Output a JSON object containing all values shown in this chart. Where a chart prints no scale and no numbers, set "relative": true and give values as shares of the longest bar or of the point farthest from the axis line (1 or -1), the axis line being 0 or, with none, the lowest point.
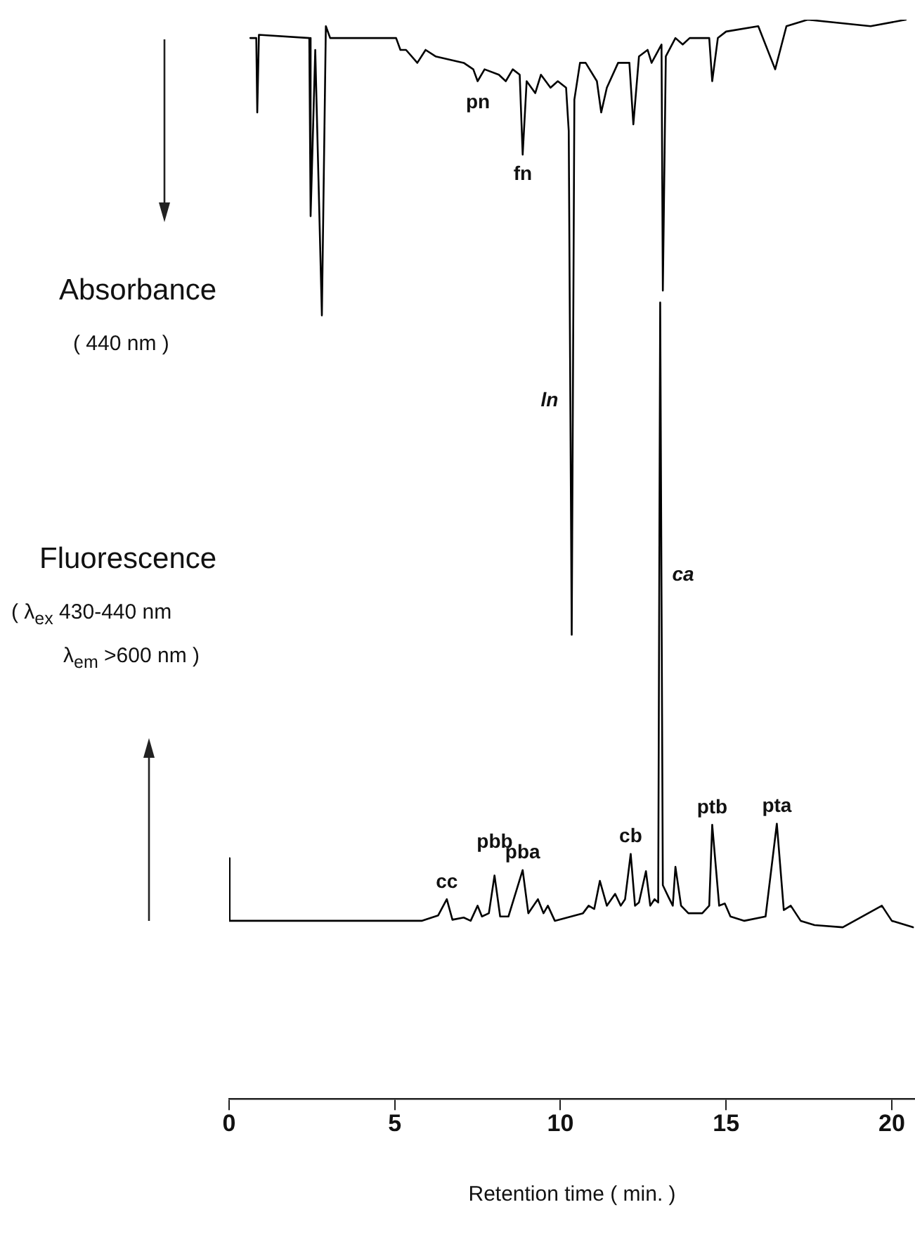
{
  "chart_data": {
    "type": "line",
    "relative": true,
    "ylabel": "Fluorescence",
    "xlabel": "Retention time ( min. )",
    "xlim": [
      0,
      20.7
    ],
    "xticks": [
      0,
      5,
      10,
      15,
      20
    ],
    "tick_labels": "x",
    "grid": false,
    "legend": false,
    "marker": "none",
    "line_style": "solid",
    "annotations": [
      "Absorbance",
      "( 440 nm )",
      "( λ$_{ex}$ 430-440 nm",
      "λ$_{em}$ >600 nm )",
      "pn",
      "fn",
      "ln",
      "ca",
      "pbb",
      {
        "text": "cc",
        "x": 6.57,
        "y": 0.185
      },
      {
        "text": "pba",
        "x": 8.86,
        "y": 0.212
      },
      {
        "text": "cb",
        "x": 12.12,
        "y": 0.227
      },
      {
        "text": "ptb",
        "x": 14.58,
        "y": 0.254
      },
      {
        "text": "pta",
        "x": 16.53,
        "y": 0.255
      }
    ],
    "series": [
      {
        "color": "#000000",
        "x": [
          0.64,
          0.82,
          0.85,
          0.9,
          2.42,
          2.46,
          2.6,
          2.8,
          2.92,
          3.05,
          5.04,
          5.17,
          5.34,
          5.68,
          5.93,
          6.23,
          7.08,
          7.37,
          7.5,
          7.71,
          8.14,
          8.35,
          8.56,
          8.77,
          8.86,
          8.98,
          9.24,
          9.41,
          9.7,
          9.92,
          10.17,
          10.25,
          10.34,
          10.42,
          10.59,
          10.76,
          11.1,
          11.23,
          11.4,
          11.74,
          12.08,
          12.2,
          12.37,
          12.63,
          12.75,
          13.05,
          13.09,
          13.18,
          13.47,
          13.69,
          13.9,
          14.49,
          14.58,
          14.75,
          15.0,
          15.97,
          16.48,
          16.82,
          17.46,
          19.36,
          20.42
        ],
        "values": [
          0.983,
          0.983,
          0.914,
          0.986,
          0.983,
          0.818,
          0.972,
          0.726,
          0.994,
          0.983,
          0.983,
          0.972,
          0.972,
          0.96,
          0.972,
          0.966,
          0.96,
          0.954,
          0.943,
          0.954,
          0.949,
          0.943,
          0.954,
          0.949,
          0.875,
          0.943,
          0.932,
          0.949,
          0.937,
          0.943,
          0.937,
          0.897,
          0.43,
          0.926,
          0.96,
          0.96,
          0.943,
          0.914,
          0.937,
          0.96,
          0.96,
          0.903,
          0.966,
          0.972,
          0.96,
          0.977,
          0.749,
          0.966,
          0.983,
          0.977,
          0.983,
          0.983,
          0.943,
          0.983,
          0.989,
          0.994,
          0.954,
          0.994,
          1.0,
          0.994,
          1.0
        ]
      },
      {
        "color": "#000000",
        "x": [
          0,
          0.01,
          0.02,
          1.14,
          1.57,
          5.81,
          6.31,
          6.57,
          6.74,
          7.08,
          7.29,
          7.5,
          7.63,
          7.84,
          8.01,
          8.18,
          8.43,
          8.86,
          9.03,
          9.32,
          9.49,
          9.62,
          9.83,
          10.68,
          10.85,
          11.02,
          11.19,
          11.4,
          11.65,
          11.82,
          11.95,
          12.12,
          12.25,
          12.37,
          12.58,
          12.71,
          12.84,
          12.95,
          13.01,
          13.09,
          13.26,
          13.39,
          13.47,
          13.64,
          13.86,
          14.28,
          14.49,
          14.58,
          14.79,
          14.96,
          15.13,
          15.55,
          16.19,
          16.53,
          16.74,
          16.95,
          17.25,
          17.67,
          18.52,
          19.7,
          20.0,
          20.64
        ],
        "values": [
          0.165,
          0.223,
          0.165,
          0.165,
          0.165,
          0.165,
          0.17,
          0.185,
          0.166,
          0.168,
          0.165,
          0.179,
          0.169,
          0.172,
          0.207,
          0.169,
          0.169,
          0.212,
          0.172,
          0.185,
          0.172,
          0.179,
          0.165,
          0.172,
          0.179,
          0.176,
          0.202,
          0.179,
          0.19,
          0.179,
          0.185,
          0.227,
          0.179,
          0.182,
          0.211,
          0.179,
          0.185,
          0.182,
          0.738,
          0.198,
          0.187,
          0.179,
          0.215,
          0.179,
          0.172,
          0.172,
          0.179,
          0.254,
          0.179,
          0.181,
          0.169,
          0.165,
          0.169,
          0.255,
          0.175,
          0.179,
          0.165,
          0.161,
          0.159,
          0.179,
          0.165,
          0.159
        ]
      }
    ]
  }
}
